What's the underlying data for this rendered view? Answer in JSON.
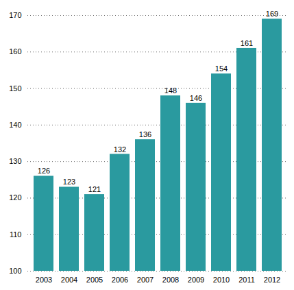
{
  "chart_data": {
    "type": "bar",
    "categories": [
      "2003",
      "2004",
      "2005",
      "2006",
      "2007",
      "2008",
      "2009",
      "2010",
      "2011",
      "2012"
    ],
    "values": [
      126,
      123,
      121,
      132,
      136,
      148,
      146,
      154,
      161,
      169
    ],
    "color": "#2a9a9f",
    "ylim": [
      100,
      170
    ],
    "yticks": [
      100,
      110,
      120,
      130,
      140,
      150,
      160,
      170
    ],
    "grid": true,
    "data_labels": true
  }
}
